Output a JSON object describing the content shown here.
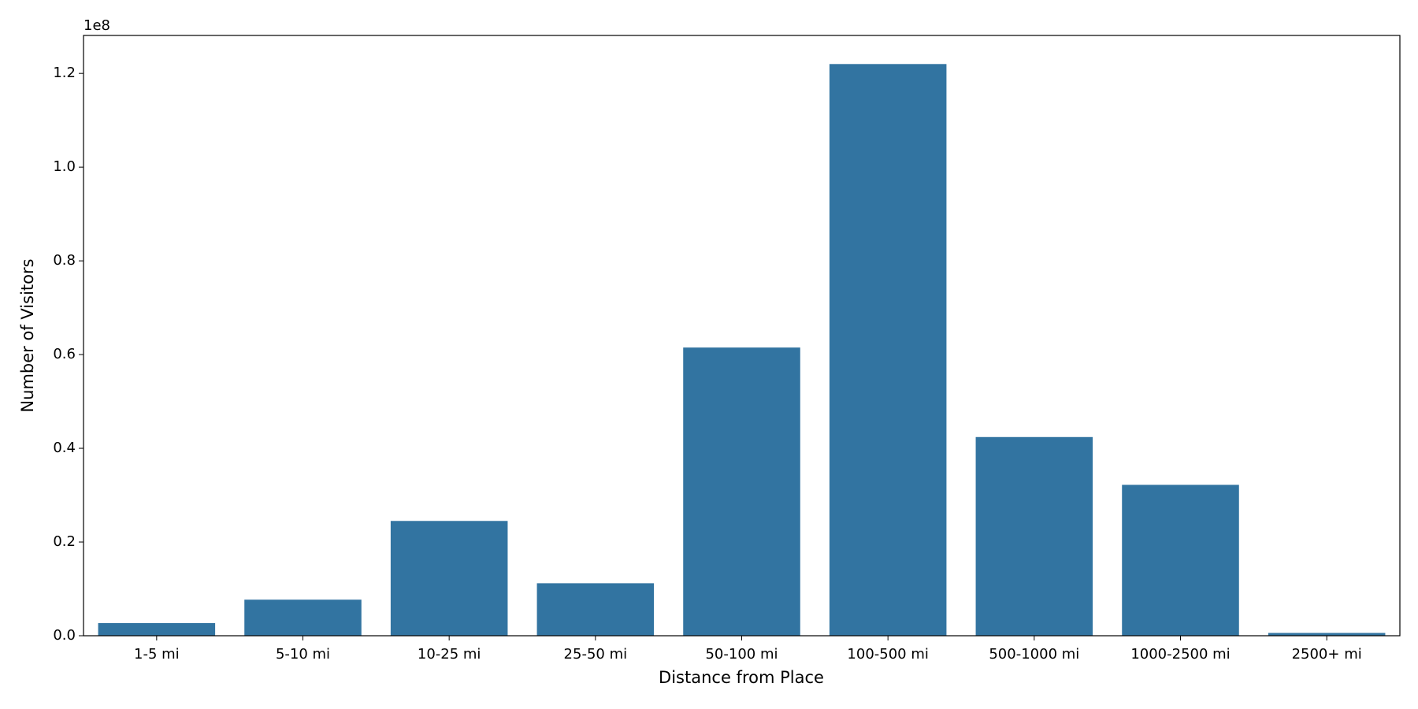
{
  "chart_data": {
    "type": "bar",
    "x_label": "Distance from Place",
    "y_label": "Number of Visitors",
    "y_offset_label": "1e8",
    "categories": [
      "1-5 mi",
      "5-10 mi",
      "10-25 mi",
      "25-50 mi",
      "50-100 mi",
      "100-500 mi",
      "500-1000 mi",
      "1000-2500 mi",
      "2500+ mi"
    ],
    "values": [
      2700000,
      7700000,
      24500000,
      11200000,
      61500000,
      122000000,
      42400000,
      32200000,
      600000
    ],
    "color": "#3274a1",
    "ylim": [
      0,
      128100000
    ],
    "yticks": [
      {
        "value": 0,
        "label": "0.0"
      },
      {
        "value": 20000000,
        "label": "0.2"
      },
      {
        "value": 40000000,
        "label": "0.4"
      },
      {
        "value": 60000000,
        "label": "0.6"
      },
      {
        "value": 80000000,
        "label": "0.8"
      },
      {
        "value": 100000000,
        "label": "1.0"
      },
      {
        "value": 120000000,
        "label": "1.2"
      }
    ],
    "grid": false
  }
}
